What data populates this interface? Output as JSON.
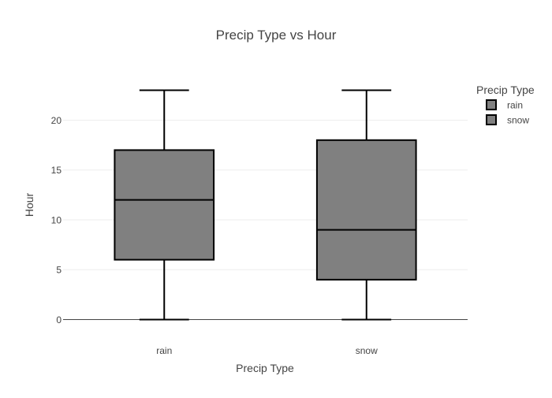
{
  "chart_data": {
    "type": "box",
    "title": "Precip Type vs Hour",
    "xlabel": "Precip Type",
    "ylabel": "Hour",
    "categories": [
      "rain",
      "snow"
    ],
    "ylim": [
      -1.15,
      24.15
    ],
    "yticks": [
      0,
      5,
      10,
      15,
      20
    ],
    "grid": true,
    "legend": {
      "title": "Precip Type",
      "placement": "top-right",
      "entries": [
        "rain",
        "snow"
      ]
    },
    "series": [
      {
        "name": "rain",
        "min": 0,
        "q1": 6,
        "median": 12,
        "q3": 17,
        "max": 23
      },
      {
        "name": "snow",
        "min": 0,
        "q1": 4,
        "median": 9,
        "q3": 18,
        "max": 23
      }
    ],
    "colors": {
      "box_fill": "#808080",
      "box_stroke": "#000000",
      "grid": "#eeeeee",
      "zero_line": "#444444",
      "text": "#444444"
    }
  }
}
